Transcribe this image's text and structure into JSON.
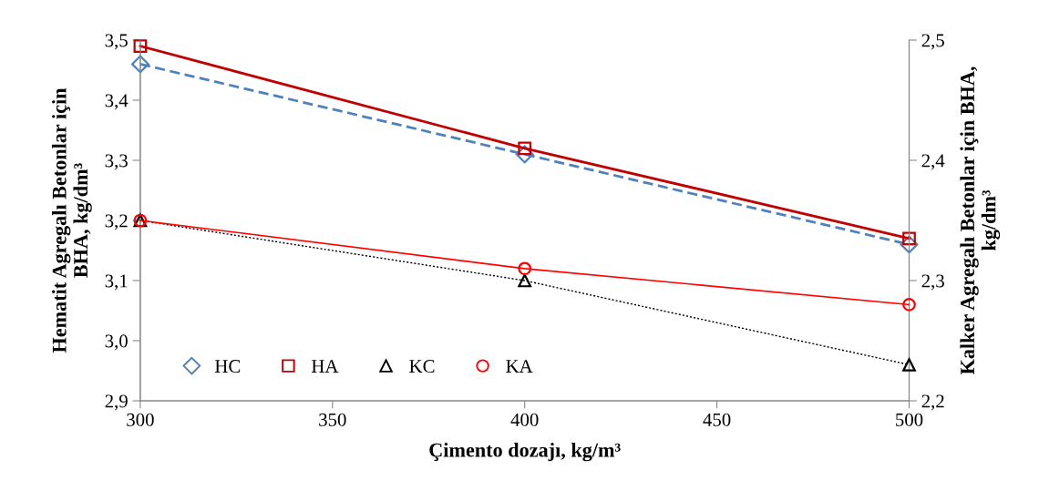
{
  "chart_data": {
    "type": "line",
    "xlabel": "Çimento dozajı, kg/m³",
    "ylabel": "Hematit Agregalı Betonlar için\nBHA, kg/dm³",
    "y2label": "Kalker Agregalı Betonlar için BHA,\nkg/dm³",
    "x": [
      300,
      400,
      500
    ],
    "xlim": [
      300,
      500
    ],
    "xticks": [
      300,
      350,
      400,
      450,
      500
    ],
    "ylim": [
      2.9,
      3.5
    ],
    "yticks": [
      {
        "value": 2.9,
        "label": "2,9"
      },
      {
        "value": 3.0,
        "label": "3,0"
      },
      {
        "value": 3.1,
        "label": "3,1"
      },
      {
        "value": 3.2,
        "label": "3,2"
      },
      {
        "value": 3.3,
        "label": "3,3"
      },
      {
        "value": 3.4,
        "label": "3,4"
      },
      {
        "value": 3.5,
        "label": "3,5"
      }
    ],
    "y2lim": [
      2.2,
      2.5
    ],
    "y2ticks": [
      {
        "value": 2.2,
        "label": "2,2"
      },
      {
        "value": 2.3,
        "label": "2,3"
      },
      {
        "value": 2.4,
        "label": "2,4"
      },
      {
        "value": 2.5,
        "label": "2,5"
      }
    ],
    "grid": false,
    "legend": "bottom left",
    "series": [
      {
        "name": "HC",
        "color": "#4f81bd",
        "marker": "diamond",
        "line_style": "dashed",
        "values": [
          3.46,
          3.31,
          3.16
        ]
      },
      {
        "name": "HA",
        "color": "#c00000",
        "marker": "square",
        "line_style": "solid",
        "values": [
          3.49,
          3.32,
          3.17
        ]
      },
      {
        "name": "KC",
        "color": "#000000",
        "marker": "triangle",
        "line_style": "dotted",
        "axis": "y2",
        "values": [
          2.35,
          2.3,
          2.23
        ]
      },
      {
        "name": "KA",
        "color": "#ff0000",
        "marker": "circle",
        "line_style": "solid",
        "axis": "y2",
        "values": [
          2.35,
          2.31,
          2.28
        ]
      }
    ]
  }
}
